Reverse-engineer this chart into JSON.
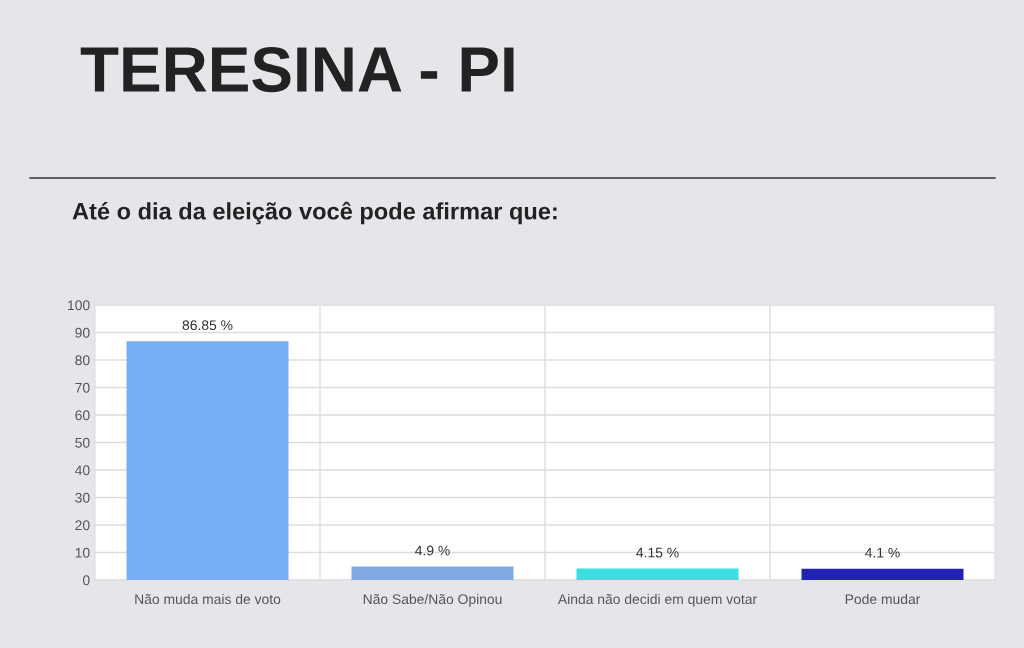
{
  "chart_data": {
    "type": "bar",
    "title": "TERESINA - PI",
    "subtitle": "Até o dia da eleição você pode afirmar que:",
    "categories": [
      "Não muda mais de voto",
      "Não Sabe/Não Opinou",
      "Ainda não decidi em quem votar",
      "Pode mudar"
    ],
    "values": [
      86.85,
      4.9,
      4.15,
      4.1
    ],
    "colors": [
      "#78aef5",
      "#7faae6",
      "#3ddfe3",
      "#2323b3"
    ],
    "value_labels": [
      "86.85 %",
      "4.9 %",
      "4.15 %",
      "4.1 %"
    ],
    "ylim": [
      0,
      100
    ],
    "yticks": [
      0,
      10,
      20,
      30,
      40,
      50,
      60,
      70,
      80,
      90,
      100
    ],
    "grid": true
  }
}
